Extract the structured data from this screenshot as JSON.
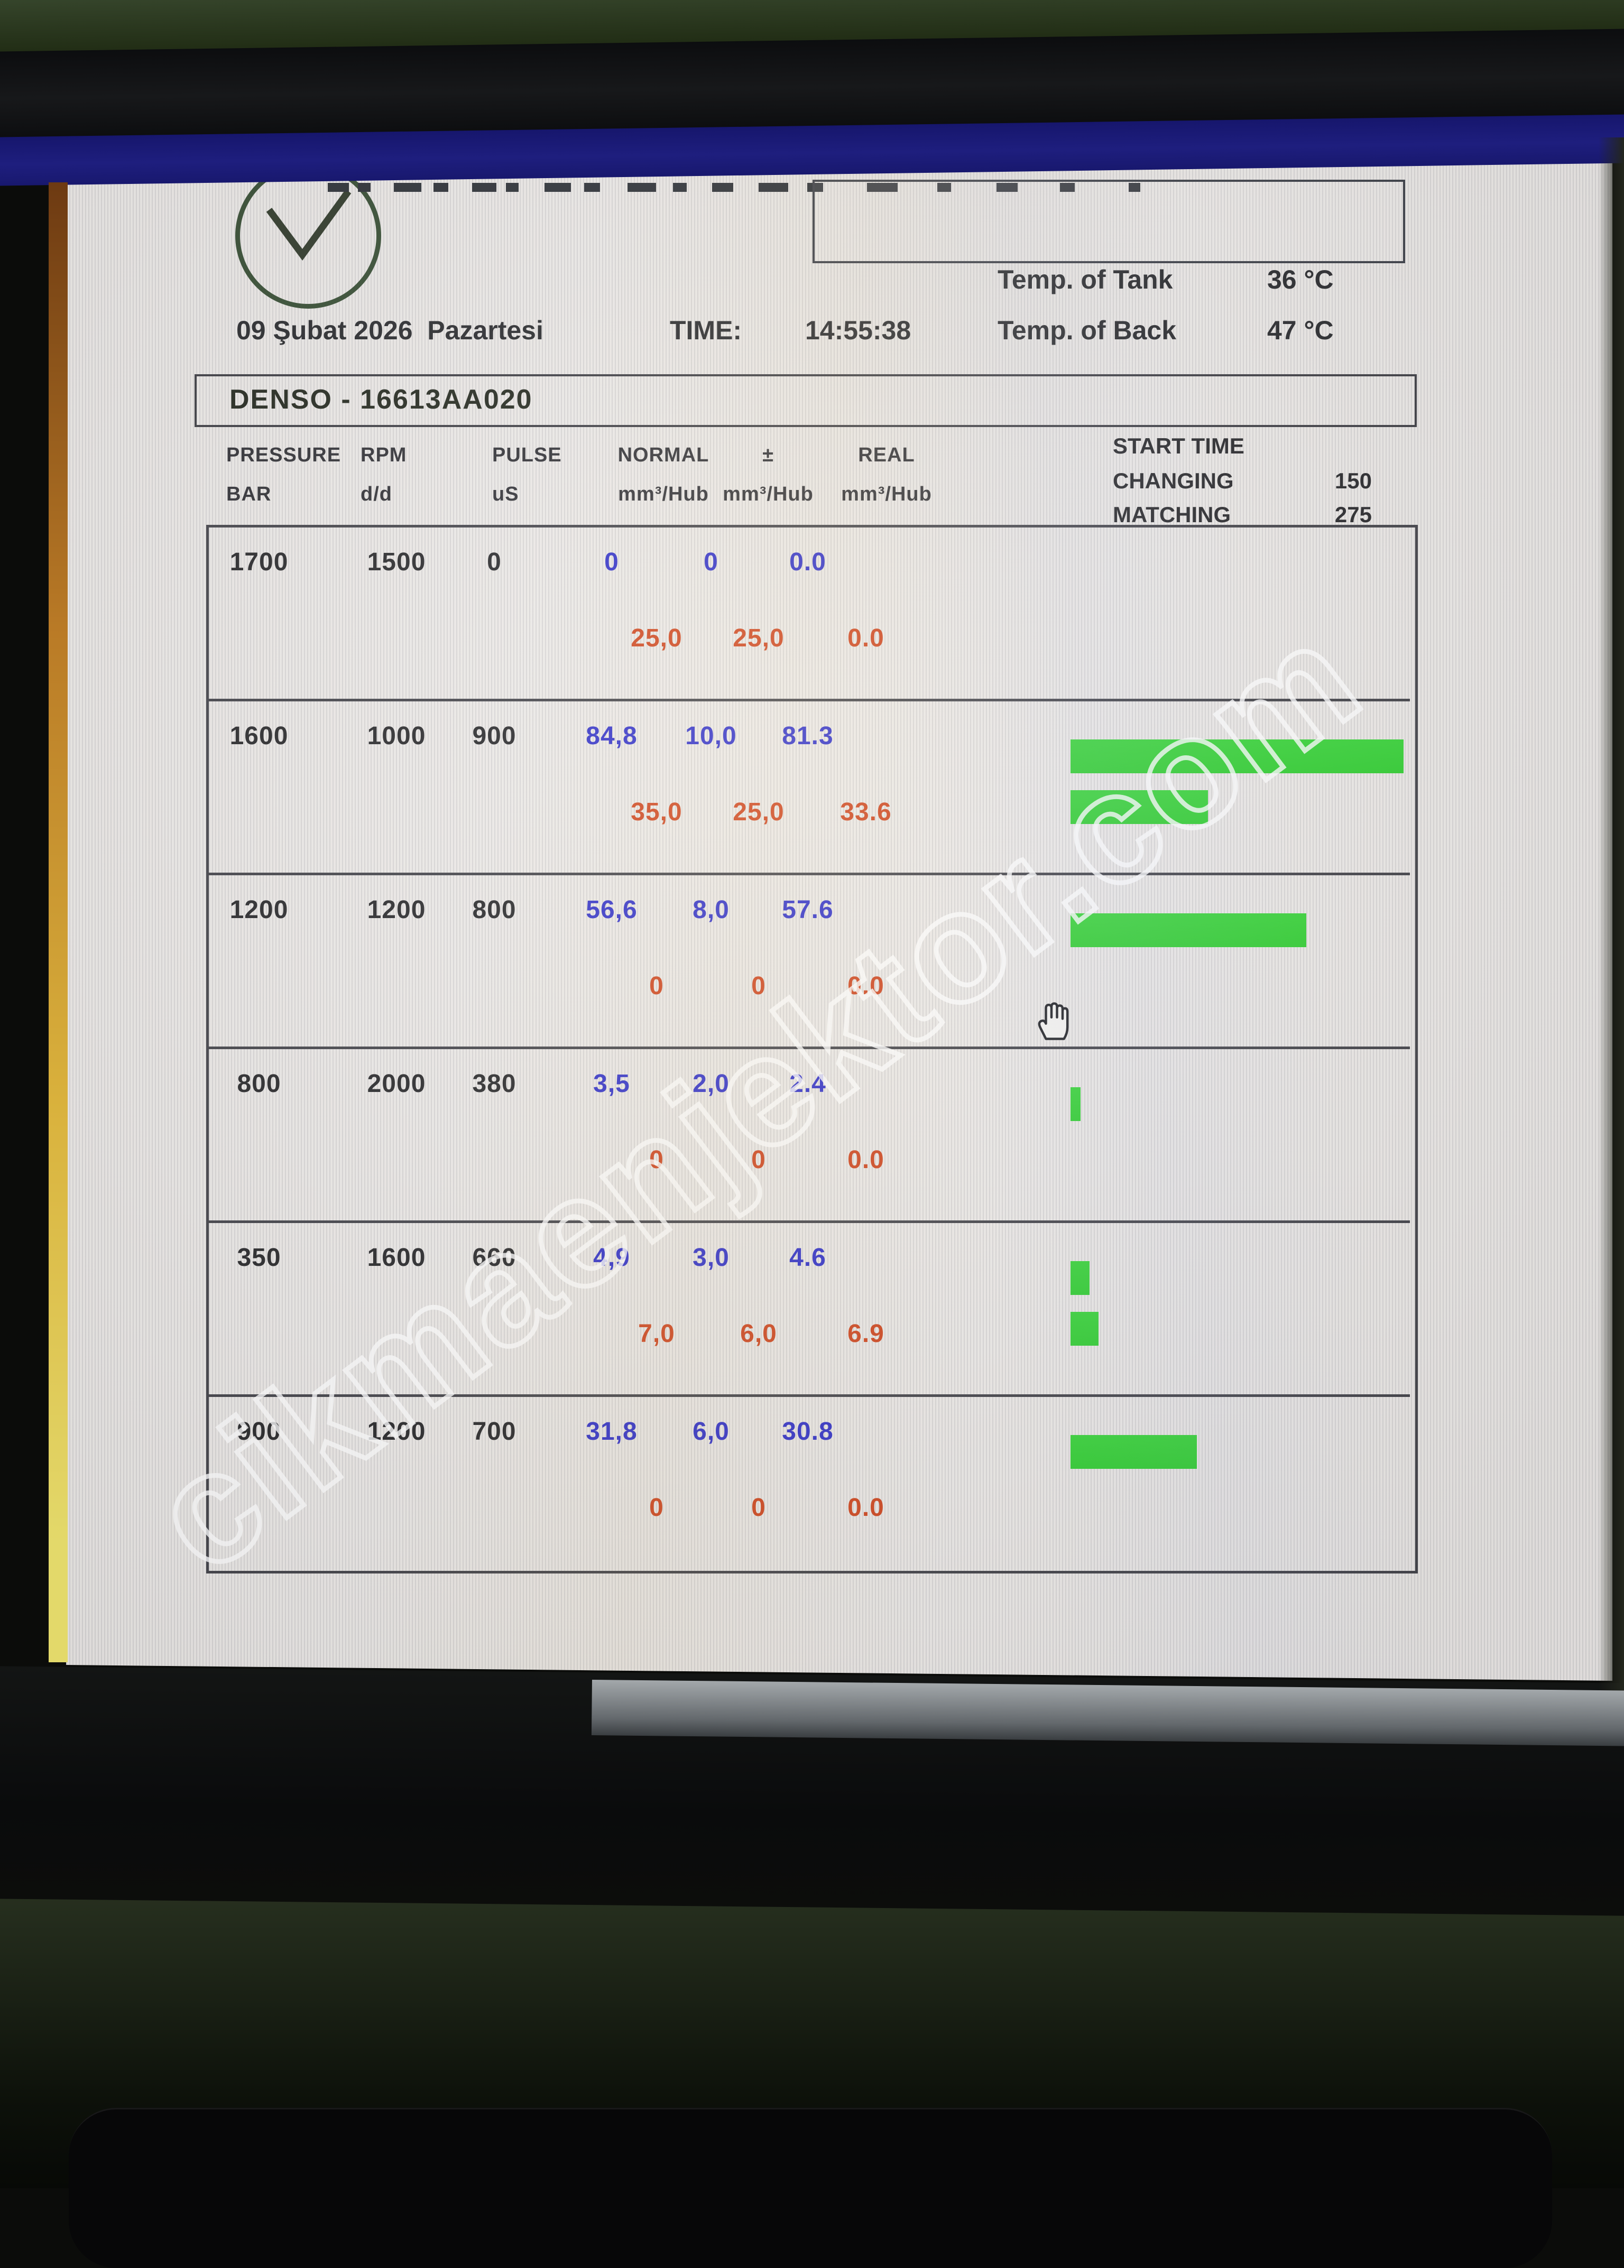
{
  "header": {
    "date": "09 Şubat 2026  Pazartesi",
    "time_label": "TIME:",
    "time_value": "14:55:38",
    "temp_tank_label": "Temp. of Tank",
    "temp_tank_value": "36 °C",
    "temp_back_label": "Temp. of Back",
    "temp_back_value": "47 °C"
  },
  "test": {
    "title": "DENSO - 16613AA020"
  },
  "table": {
    "columns": [
      {
        "label": "PRESSURE",
        "unit": "BAR"
      },
      {
        "label": "RPM",
        "unit": "d/d"
      },
      {
        "label": "PULSE",
        "unit": "uS"
      },
      {
        "label": "NORMAL",
        "unit": "mm³/Hub"
      },
      {
        "label": "±",
        "unit": "mm³/Hub"
      },
      {
        "label": "REAL",
        "unit": "mm³/Hub"
      }
    ],
    "start_time": {
      "title": "START TIME",
      "changing_label": "CHANGING",
      "changing_value": "150",
      "matching_label": "MATCHING",
      "matching_value": "275"
    },
    "rows": [
      {
        "pressure": "1700",
        "rpm": "1500",
        "pulse": "0",
        "line1": {
          "normal": "0",
          "tol": "0",
          "real": "0.0"
        },
        "line2": {
          "normal": "25,0",
          "tol": "25,0",
          "real": "0.0"
        },
        "bars": [
          0,
          0
        ]
      },
      {
        "pressure": "1600",
        "rpm": "1000",
        "pulse": "900",
        "line1": {
          "normal": "84,8",
          "tol": "10,0",
          "real": "81.3"
        },
        "line2": {
          "normal": "35,0",
          "tol": "25,0",
          "real": "33.6"
        },
        "bars": [
          81.3,
          33.6
        ]
      },
      {
        "pressure": "1200",
        "rpm": "1200",
        "pulse": "800",
        "line1": {
          "normal": "56,6",
          "tol": "8,0",
          "real": "57.6"
        },
        "line2": {
          "normal": "0",
          "tol": "0",
          "real": "0.0"
        },
        "bars": [
          57.6,
          0
        ]
      },
      {
        "pressure": "800",
        "rpm": "2000",
        "pulse": "380",
        "line1": {
          "normal": "3,5",
          "tol": "2,0",
          "real": "2.4"
        },
        "line2": {
          "normal": "0",
          "tol": "0",
          "real": "0.0"
        },
        "bars": [
          2.4,
          0
        ]
      },
      {
        "pressure": "350",
        "rpm": "1600",
        "pulse": "660",
        "line1": {
          "normal": "4,9",
          "tol": "3,0",
          "real": "4.6"
        },
        "line2": {
          "normal": "7,0",
          "tol": "6,0",
          "real": "6.9"
        },
        "bars": [
          4.6,
          6.9
        ]
      },
      {
        "pressure": "900",
        "rpm": "1200",
        "pulse": "700",
        "line1": {
          "normal": "31,8",
          "tol": "6,0",
          "real": "30.8"
        },
        "line2": {
          "normal": "0",
          "tol": "0",
          "real": "0.0"
        },
        "bars": [
          30.8,
          0
        ]
      }
    ]
  },
  "watermark": {
    "text": "cikmaenjektor.com"
  },
  "cursor": {
    "type": "hand-pointer"
  },
  "colors": {
    "value_blue": "#2626c6",
    "value_red": "#cd3c12",
    "bar_green": "#2fd32f",
    "titlebar_navy": "#1e1e7e",
    "screen_bg": "#edeae7"
  }
}
